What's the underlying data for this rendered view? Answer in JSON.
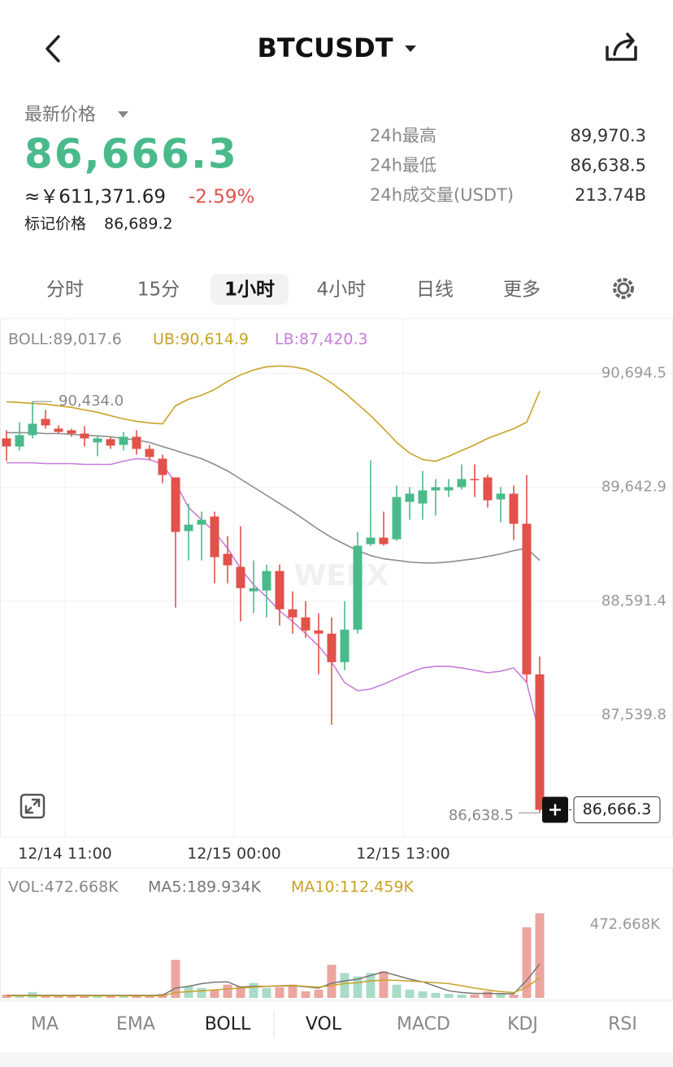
{
  "header": {
    "title": "BTCUSDT"
  },
  "ticker": {
    "label": "最新价格",
    "price": "86,666.3",
    "cny": "≈￥611,371.69",
    "change": "-2.59%",
    "mark_label": "标记价格",
    "mark_price": "86,689.2"
  },
  "stats": [
    {
      "label": "24h最高",
      "value": "89,970.3"
    },
    {
      "label": "24h最低",
      "value": "86,638.5"
    },
    {
      "label": "24h成交量(USDT)",
      "value": "213.74B"
    }
  ],
  "timeframes": [
    "分时",
    "15分",
    "1小时",
    "4小时",
    "日线",
    "更多"
  ],
  "active_timeframe": 2,
  "chart_data": [
    {
      "type": "candlestick",
      "watermark": "WEEX",
      "open": [
        90094,
        90019,
        90124,
        90274,
        90184,
        90169,
        90139,
        90057,
        90087,
        90034,
        90109,
        89997,
        89907,
        89734,
        89238,
        89298,
        89373,
        89028,
        88908,
        88682,
        88690,
        88870,
        88517,
        88442,
        88322,
        88292,
        88029,
        88329,
        89118,
        89178,
        89163,
        89508,
        89493,
        89614,
        89614,
        89644,
        89719,
        89734,
        89531,
        89584,
        89306,
        87916
      ],
      "high": [
        90169,
        90244,
        90434.0,
        90357,
        90214,
        90184,
        90207,
        90124,
        90109,
        90154,
        90169,
        90034,
        89944,
        89734,
        89493,
        89418,
        89418,
        89193,
        89283,
        88968,
        88930,
        88930,
        88682,
        88592,
        88480,
        88442,
        88592,
        89231,
        89891,
        89418,
        89659,
        89644,
        89794,
        89719,
        89719,
        89854,
        89854,
        89756,
        89644,
        89659,
        89756,
        88082
      ],
      "low": [
        89884,
        89982,
        90094,
        90184,
        90139,
        90109,
        90019,
        89929,
        89997,
        89982,
        89944,
        89891,
        89681,
        88532,
        88968,
        88968,
        88757,
        88757,
        88405,
        88480,
        88442,
        88367,
        88292,
        88254,
        87916,
        87451,
        87954,
        88292,
        89103,
        89103,
        89148,
        89343,
        89343,
        89381,
        89553,
        89621,
        89553,
        89456,
        89321,
        89155,
        87841,
        86638.5
      ],
      "close": [
        90019,
        90124,
        90229,
        90214,
        90154,
        90139,
        90094,
        90094,
        90027,
        90109,
        89997,
        89922,
        89756,
        89231,
        89298,
        89343,
        88998,
        88923,
        88712,
        88712,
        88870,
        88517,
        88442,
        88322,
        88292,
        88029,
        88329,
        89103,
        89178,
        89118,
        89553,
        89584,
        89614,
        89644,
        89644,
        89719,
        89712,
        89523,
        89584,
        89306,
        87916,
        86666.3
      ],
      "high_label": "90,434.0",
      "low_label": "86,638.5",
      "last_label": "86,666.3",
      "up_color": "#4aba8b",
      "down_color": "#e0524a",
      "series": [
        {
          "label": "BOLL:89,017.6",
          "color": "#8c8c8c",
          "values": [
            90147,
            90147,
            90147,
            90139,
            90139,
            90132,
            90124,
            90117,
            90109,
            90094,
            90079,
            90057,
            90019,
            89982,
            89944,
            89907,
            89854,
            89794,
            89719,
            89644,
            89569,
            89493,
            89418,
            89336,
            89253,
            89178,
            89118,
            89058,
            89013,
            88983,
            88968,
            88953,
            88945,
            88945,
            88953,
            88968,
            88983,
            89005,
            89028,
            89058,
            89080,
            88968
          ]
        },
        {
          "label": "UB:90,614.9",
          "color": "#c9a227",
          "values": [
            90432,
            90425,
            90417,
            90410,
            90395,
            90380,
            90357,
            90335,
            90304,
            90274,
            90252,
            90237,
            90229,
            90395,
            90455,
            90492,
            90545,
            90620,
            90680,
            90725,
            90755,
            90763,
            90755,
            90733,
            90680,
            90605,
            90515,
            90410,
            90304,
            90184,
            90057,
            89959,
            89899,
            89884,
            89929,
            89982,
            90034,
            90094,
            90139,
            90184,
            90244,
            90530
          ]
        },
        {
          "label": "LB:87,420.3",
          "color": "#c77ddb",
          "values": [
            89869,
            89869,
            89869,
            89861,
            89861,
            89861,
            89854,
            89854,
            89854,
            89884,
            89907,
            89899,
            89854,
            89681,
            89456,
            89343,
            89231,
            89080,
            88893,
            88743,
            88630,
            88502,
            88405,
            88292,
            88179,
            88029,
            87841,
            87766,
            87781,
            87826,
            87879,
            87931,
            87976,
            87991,
            87991,
            87976,
            87954,
            87931,
            87946,
            87976,
            87841,
            87353
          ]
        }
      ],
      "ylim": [
        86400,
        91200
      ],
      "yticks": [
        {
          "value": 90694.5,
          "label": "90,694.5"
        },
        {
          "value": 89642.9,
          "label": "89,642.9"
        },
        {
          "value": 88591.4,
          "label": "88,591.4"
        },
        {
          "value": 87539.8,
          "label": "87,539.8"
        }
      ],
      "xlim": [
        -0.5,
        51.25
      ],
      "xticks": [
        {
          "value": 4.5,
          "label": "12/14 11:00"
        },
        {
          "value": 17.5,
          "label": "12/15 00:00"
        },
        {
          "value": 30.5,
          "label": "12/15 13:00"
        }
      ],
      "grid": true
    },
    {
      "type": "bar",
      "up_color": "#a9dcc6",
      "down_color": "#eda5a0",
      "series": [
        {
          "label": "VOL:472.668K",
          "color": "#888888",
          "values": [
            18.5,
            13.9,
            32.4,
            18.5,
            13.9,
            13.9,
            9.3,
            9.3,
            9.3,
            9.3,
            9.3,
            9.3,
            23.2,
            213,
            64.8,
            55.6,
            46.3,
            74.1,
            64.8,
            83.3,
            55.6,
            60.2,
            74.1,
            37.0,
            46.3,
            185,
            139,
            120,
            139,
            148,
            74.1,
            46.3,
            37.0,
            27.8,
            23.2,
            18.5,
            18.5,
            37.0,
            23.2,
            18.5,
            394,
            472.668
          ]
        },
        {
          "label": "MA5:189.934K",
          "color": "#777777",
          "values": [
            15,
            15,
            15,
            15,
            15,
            15,
            15,
            15,
            15,
            15,
            15,
            15,
            15,
            55,
            65,
            80,
            88,
            90,
            60,
            65,
            65,
            67,
            68,
            62,
            55,
            82,
            95,
            105,
            125,
            145,
            125,
            105,
            90,
            65,
            40,
            30,
            25,
            25,
            24,
            23,
            98,
            189.934
          ]
        },
        {
          "label": "MA10:112.459K",
          "color": "#c9a227",
          "values": [
            12,
            12,
            12,
            12,
            12,
            12,
            12,
            12,
            12,
            12,
            12,
            12,
            12,
            30,
            35,
            40,
            45,
            50,
            55,
            60,
            65,
            68,
            70,
            65,
            60,
            70,
            80,
            85,
            95,
            100,
            98,
            95,
            90,
            85,
            80,
            68,
            55,
            45,
            35,
            30,
            60,
            112.459
          ]
        }
      ],
      "ylim": [
        0,
        490
      ],
      "yticks": [
        {
          "value": 472.668,
          "label": "472.668K"
        }
      ],
      "xlim": [
        -0.5,
        51.25
      ]
    }
  ],
  "indicators": [
    "MA",
    "EMA",
    "BOLL",
    "VOL",
    "MACD",
    "KDJ",
    "RSI"
  ],
  "active_indicators": [
    2,
    3
  ]
}
